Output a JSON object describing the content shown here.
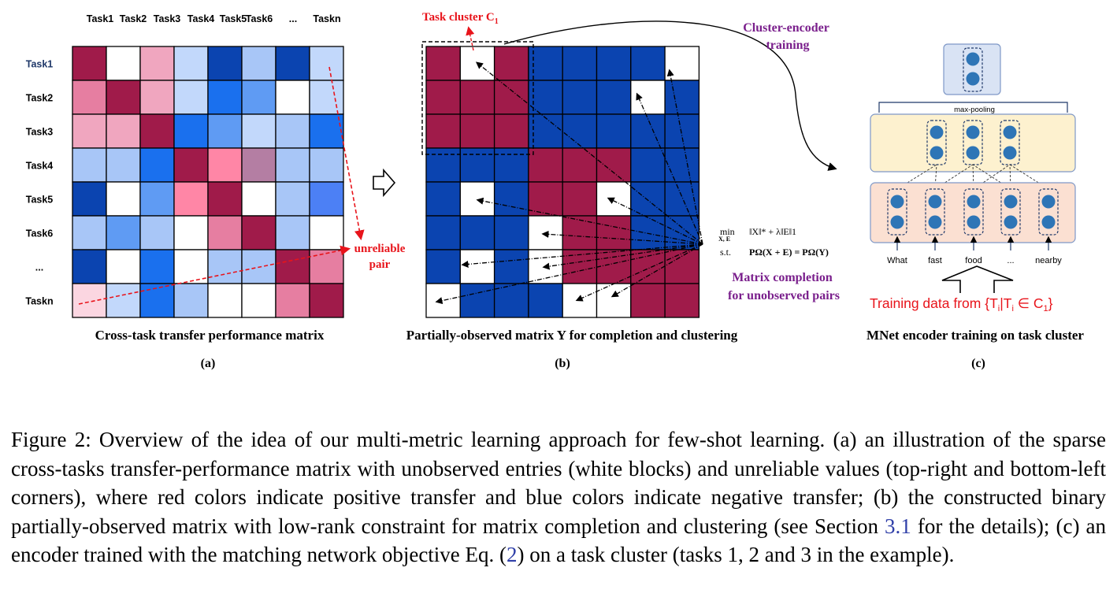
{
  "panel_a": {
    "col_headers": [
      "Task1",
      "Task2",
      "Task3",
      "Task4",
      "Task5",
      "Task6",
      "...",
      "Taskn"
    ],
    "row_headers": [
      "Task1",
      "Task2",
      "Task3",
      "Task4",
      "Task5",
      "Task6",
      "...",
      "Taskn"
    ],
    "cells": [
      [
        "#a01b4a",
        "#ffffff",
        "#f0a6bf",
        "#c2d8fb",
        "#0b44b0",
        "#a8c6f7",
        "#0b44b0",
        "#c2d8fb"
      ],
      [
        "#e67ea1",
        "#a01b4a",
        "#f0a6bf",
        "#c2d8fb",
        "#1a70ee",
        "#5f9bf3",
        "#ffffff",
        "#c2d8fb"
      ],
      [
        "#f0a6bf",
        "#f0a6bf",
        "#a01b4a",
        "#1a70ee",
        "#5f9bf3",
        "#c2d8fb",
        "#a8c6f7",
        "#1a70ee"
      ],
      [
        "#a8c6f7",
        "#a8c6f7",
        "#1a70ee",
        "#a01b4a",
        "#ff86a6",
        "#b47ea3",
        "#a8c6f7",
        "#a8c6f7"
      ],
      [
        "#0b44b0",
        "#ffffff",
        "#5f9bf3",
        "#ff86a6",
        "#a01b4a",
        "#ffffff",
        "#a8c6f7",
        "#4c80f5"
      ],
      [
        "#a8c6f7",
        "#5f9bf3",
        "#a8c6f7",
        "#ffffff",
        "#e67ea1",
        "#a01b4a",
        "#a8c6f7",
        "#ffffff"
      ],
      [
        "#0b44b0",
        "#ffffff",
        "#1a70ee",
        "#ffffff",
        "#a8c6f7",
        "#a8c6f7",
        "#a01b4a",
        "#e67ea1"
      ],
      [
        "#fbd6e1",
        "#c2d8fb",
        "#1a70ee",
        "#a8c6f7",
        "#ffffff",
        "#ffffff",
        "#e67ea1",
        "#a01b4a"
      ]
    ],
    "annotation": [
      "unreliable",
      "pair"
    ],
    "title": "Cross-task transfer performance  matrix",
    "label": "(a)"
  },
  "panel_b": {
    "cells": [
      [
        "r",
        "w",
        "r",
        "b",
        "b",
        "b",
        "b",
        "w"
      ],
      [
        "r",
        "r",
        "r",
        "b",
        "b",
        "b",
        "w",
        "b"
      ],
      [
        "r",
        "r",
        "r",
        "b",
        "b",
        "b",
        "b",
        "b"
      ],
      [
        "b",
        "b",
        "b",
        "r",
        "r",
        "r",
        "b",
        "b"
      ],
      [
        "b",
        "w",
        "b",
        "r",
        "r",
        "w",
        "b",
        "b"
      ],
      [
        "b",
        "b",
        "b",
        "w",
        "r",
        "r",
        "b",
        "b"
      ],
      [
        "b",
        "w",
        "b",
        "w",
        "r",
        "r",
        "r",
        "r"
      ],
      [
        "w",
        "b",
        "b",
        "b",
        "w",
        "w",
        "r",
        "r"
      ]
    ],
    "colors": {
      "r": "#a01b4a",
      "b": "#0b44b0",
      "w": "#ffffff"
    },
    "cluster_label": "Task cluster C",
    "cluster_sub": "1",
    "formula_line1_op": "min",
    "formula_line1_sub": "X, E",
    "formula_line1_expr": "‖X‖* + λ‖E‖1",
    "formula_line2_op": "s.t.",
    "formula_line2_expr": "PΩ(X + E) = PΩ(Y)",
    "completion_label": [
      "Matrix completion",
      "for unobserved pairs"
    ],
    "title": "Partially-observed  matrix Y for completion and clustering",
    "label": "(b)"
  },
  "panel_c": {
    "training_label": [
      "Cluster-encoder",
      "training"
    ],
    "pool_label": "max-pooling",
    "words": [
      "What",
      "fast",
      "food",
      "...",
      "nearby"
    ],
    "training_data": "Training data from {T",
    "training_data_mid": "|T",
    "training_data_end": " ∈ C",
    "training_data_sub_i": "i",
    "training_data_sub_1": "1",
    "training_data_close": "}",
    "title": "MNet encoder training on task cluster",
    "label": "(c)"
  },
  "caption": {
    "p1": "Figure 2: Overview of the idea of our multi-metric learning approach for few-shot learning. (a) an illustration of the sparse cross-tasks transfer-performance matrix with unobserved entries (white blocks) and unreliable values (top-right and bottom-left corners), where red colors indicate positive transfer and blue colors indicate negative transfer; (b) the constructed binary partially-observed matrix with low-rank constraint for matrix completion and clustering (see Section ",
    "ref1": "3.1",
    "p2": " for the details); (c) an encoder trained with the matching network objective Eq. (",
    "ref2": "2",
    "p3": ") on a task cluster (tasks 1, 2 and 3 in the example)."
  }
}
